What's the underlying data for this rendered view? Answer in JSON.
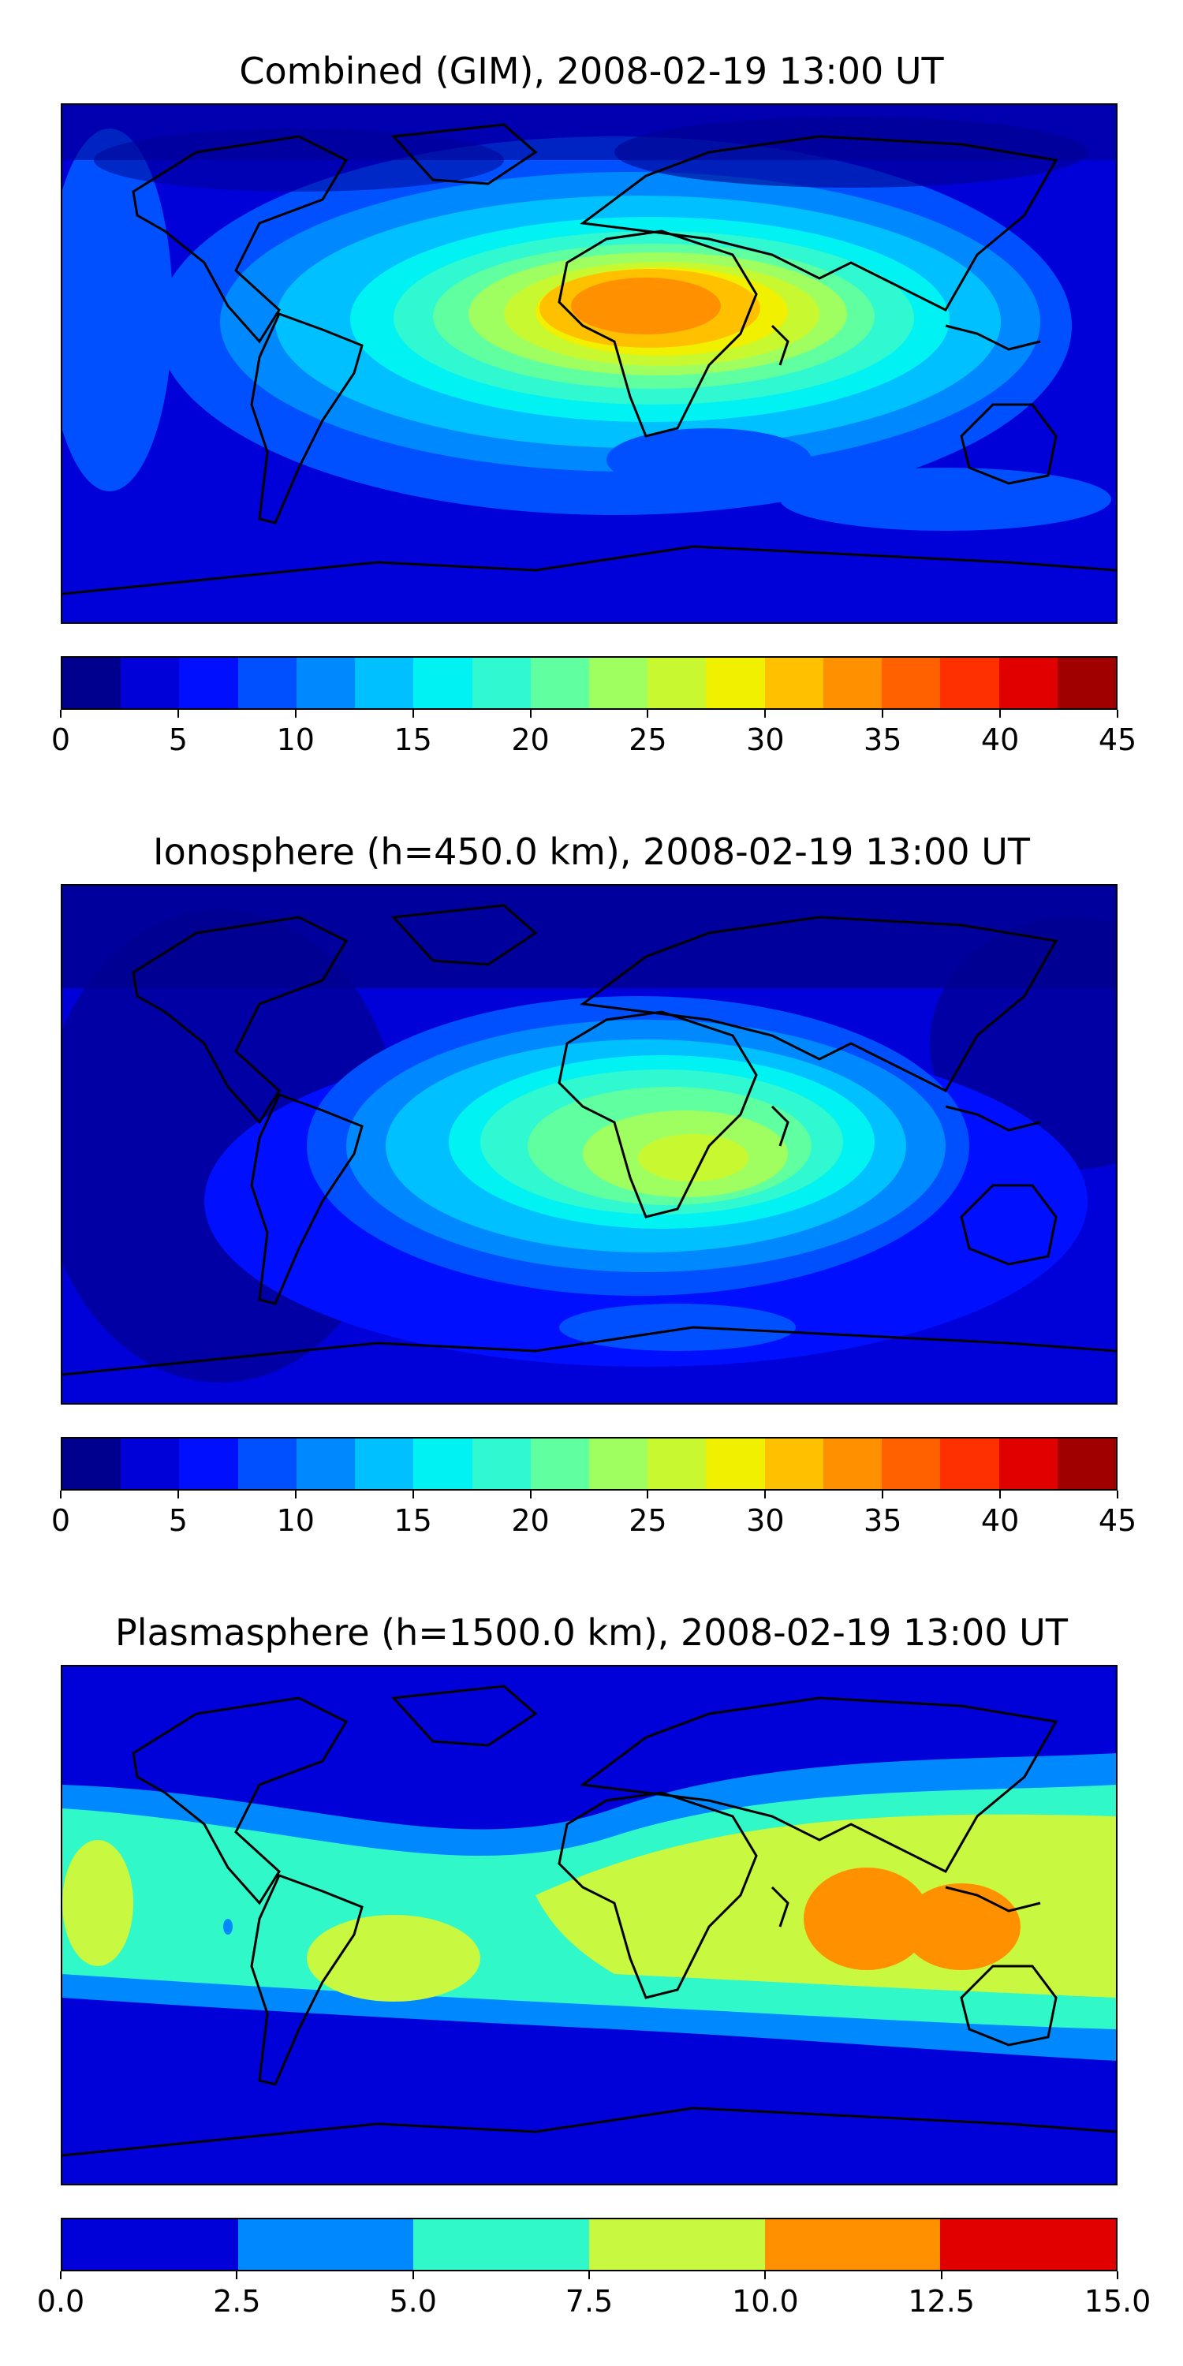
{
  "panels": [
    {
      "title": "Combined (GIM), 2008-02-19 13:00 UT",
      "field": "combined",
      "colorbar": {
        "colors": [
          "#00008f",
          "#0000d8",
          "#0010ff",
          "#0050ff",
          "#0088ff",
          "#00c0ff",
          "#00f2f2",
          "#30f8d0",
          "#60ffa0",
          "#a0ff60",
          "#c8f830",
          "#f0f000",
          "#ffc000",
          "#ff9000",
          "#ff6000",
          "#ff3000",
          "#e00000",
          "#a00000"
        ],
        "tick_labels": [
          "0",
          "5",
          "10",
          "15",
          "20",
          "25",
          "30",
          "35",
          "40",
          "45"
        ],
        "range": [
          0,
          45
        ]
      }
    },
    {
      "title": "Ionosphere  (h=450.0 km), 2008-02-19 13:00 UT",
      "field": "ionosphere",
      "colorbar": {
        "colors": [
          "#00008f",
          "#0000d8",
          "#0010ff",
          "#0050ff",
          "#0088ff",
          "#00c0ff",
          "#00f2f2",
          "#30f8d0",
          "#60ffa0",
          "#a0ff60",
          "#c8f830",
          "#f0f000",
          "#ffc000",
          "#ff9000",
          "#ff6000",
          "#ff3000",
          "#e00000",
          "#a00000"
        ],
        "tick_labels": [
          "0",
          "5",
          "10",
          "15",
          "20",
          "25",
          "30",
          "35",
          "40",
          "45"
        ],
        "range": [
          0,
          45
        ]
      }
    },
    {
      "title": "Plasmasphere (h=1500.0 km), 2008-02-19 13:00 UT",
      "field": "plasmasphere",
      "colorbar": {
        "colors": [
          "#0000d8",
          "#0088ff",
          "#30f8c8",
          "#c8f840",
          "#ff9000",
          "#e00000"
        ],
        "tick_labels": [
          "0.0",
          "2.5",
          "5.0",
          "7.5",
          "10.0",
          "12.5",
          "15.0"
        ],
        "range": [
          0,
          15
        ]
      }
    }
  ]
}
